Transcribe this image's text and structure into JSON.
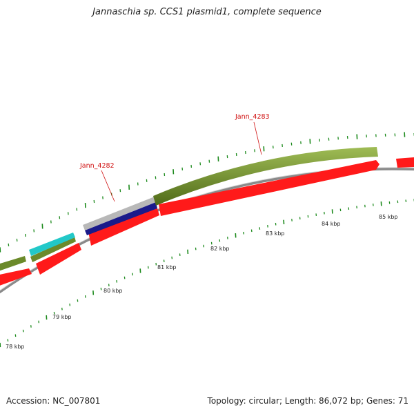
{
  "title": "Jannaschia sp. CCS1 plasmid1, complete sequence",
  "footer": {
    "accession": "Accession: NC_007801",
    "topology": "Topology: circular; Length: 86,072 bp; Genes: 71"
  },
  "scale": {
    "labels": [
      "78 kbp",
      "79 kbp",
      "80 kbp",
      "81 kbp",
      "82 kbp",
      "83 kbp",
      "84 kbp",
      "85 kbp"
    ]
  },
  "gene_labels": {
    "jann_4282": "Jann_4282",
    "jann_4283": "Jann_4283"
  },
  "colors": {
    "cds_forward": "#6b8a2a",
    "cds_reverse": "#ff1a1a",
    "cyan_feature": "#22c8c8",
    "blue_feature": "#1a1a8a",
    "grey_feature": "#b8b8b8",
    "backbone": "#8a8a8a",
    "tick": "#1c8a1c",
    "label": "#d01010"
  }
}
